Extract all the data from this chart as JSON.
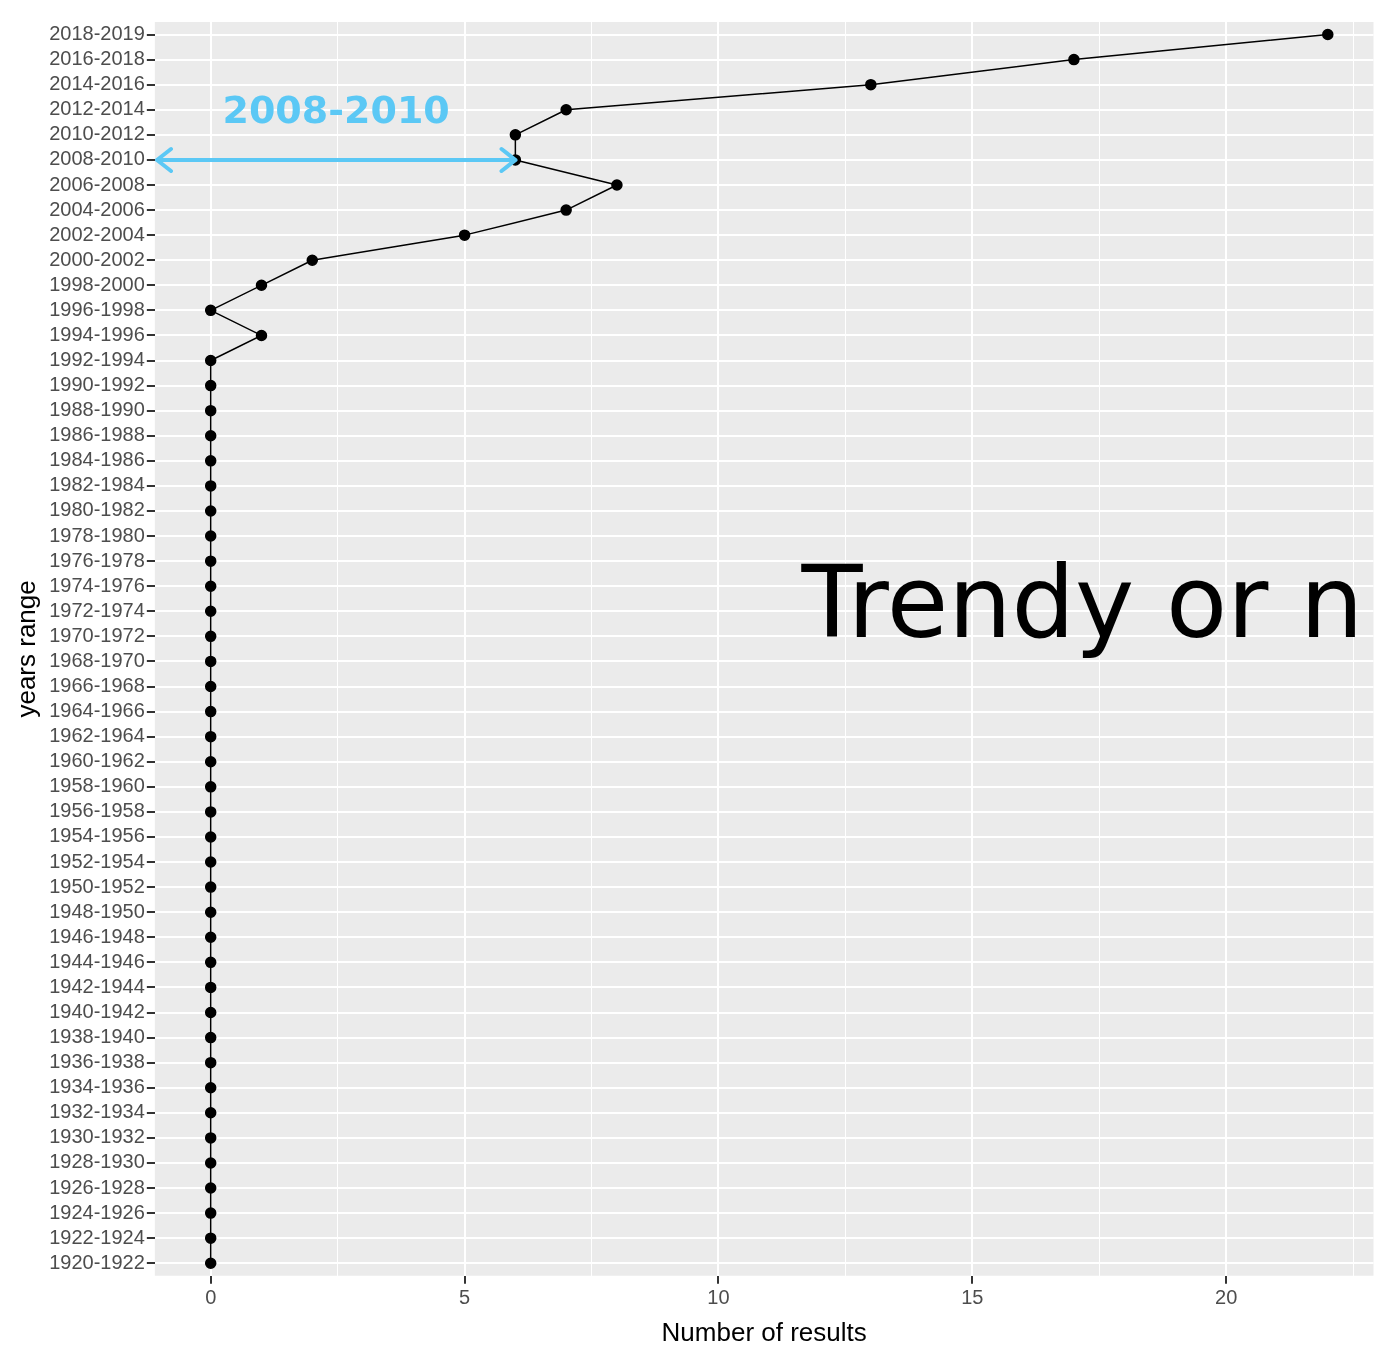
{
  "chart_data": {
    "type": "line",
    "orientation": "horizontal",
    "xlabel": "Number of results",
    "ylabel": "years range",
    "categories": [
      "2018-2019",
      "2016-2018",
      "2014-2016",
      "2012-2014",
      "2010-2012",
      "2008-2010",
      "2006-2008",
      "2004-2006",
      "2002-2004",
      "2000-2002",
      "1998-2000",
      "1996-1998",
      "1994-1996",
      "1992-1994",
      "1990-1992",
      "1988-1990",
      "1986-1988",
      "1984-1986",
      "1982-1984",
      "1980-1982",
      "1978-1980",
      "1976-1978",
      "1974-1976",
      "1972-1974",
      "1970-1972",
      "1968-1970",
      "1966-1968",
      "1964-1966",
      "1962-1964",
      "1960-1962",
      "1958-1960",
      "1956-1958",
      "1954-1956",
      "1952-1954",
      "1950-1952",
      "1948-1950",
      "1946-1948",
      "1944-1946",
      "1942-1944",
      "1940-1942",
      "1938-1940",
      "1936-1938",
      "1934-1936",
      "1932-1934",
      "1930-1932",
      "1928-1930",
      "1926-1928",
      "1924-1926",
      "1922-1924",
      "1920-1922"
    ],
    "series": [
      {
        "color": "#000000",
        "values": [
          22,
          17,
          13,
          7,
          6,
          6,
          8,
          7,
          5,
          2,
          1,
          0,
          1,
          0,
          0,
          0,
          0,
          0,
          0,
          0,
          0,
          0,
          0,
          0,
          0,
          0,
          0,
          0,
          0,
          0,
          0,
          0,
          0,
          0,
          0,
          0,
          0,
          0,
          0,
          0,
          0,
          0,
          0,
          0,
          0,
          0,
          0,
          0,
          0,
          0
        ]
      }
    ],
    "xlim": [
      -1.1,
      22.9
    ],
    "xticks": [
      0,
      {
        "value": 2.5,
        "label": null
      },
      5,
      {
        "value": 7.5,
        "label": null
      },
      10,
      {
        "value": 12.5,
        "label": null
      },
      15,
      {
        "value": 17.5,
        "label": null
      },
      20,
      {
        "value": 22.5,
        "label": null
      }
    ],
    "grid": true,
    "legend": false,
    "marker": "circle",
    "line_style": "solid",
    "annotations": [
      {
        "text": "2008-2010",
        "x": 6,
        "y": "2008-2010"
      },
      "Trendy or n"
    ]
  }
}
